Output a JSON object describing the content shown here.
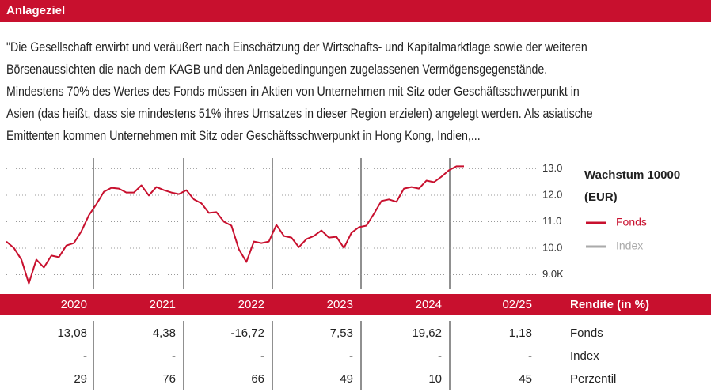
{
  "header": {
    "title": "Anlageziel"
  },
  "description": [
    "\"Die Gesellschaft erwirbt und veräußert nach Einschätzung der Wirtschafts- und Kapitalmarktlage sowie der weiteren",
    "Börsenaussichten die nach dem KAGB und den Anlagebedingungen zugelassenen Vermögensgegenstände.",
    "Mindestens 70% des Wertes des Fonds müssen in Aktien von Unternehmen mit Sitz oder Geschäftsschwerpunkt in",
    "Asien (das heißt, dass sie mindestens 51% ihres Umsatzes in dieser Region erzielen) angelegt werden. Als asiatische",
    "Emittenten kommen Unternehmen mit Sitz oder Geschäftsschwerpunkt in Hong Kong, Indien,..."
  ],
  "chart_data": {
    "type": "line",
    "title": "Wachstum 10000",
    "subtitle": "(EUR)",
    "series": [
      {
        "name": "Fonds",
        "color": "#c8102e",
        "values": [
          10.25,
          10.01,
          9.57,
          8.67,
          9.57,
          9.27,
          9.72,
          9.66,
          10.1,
          10.19,
          10.64,
          11.24,
          11.66,
          12.13,
          12.28,
          12.25,
          12.1,
          12.1,
          12.37,
          11.99,
          12.31,
          12.19,
          12.1,
          12.04,
          12.19,
          11.84,
          11.69,
          11.33,
          11.36,
          11.0,
          10.85,
          9.96,
          9.48,
          10.25,
          10.19,
          10.25,
          10.88,
          10.46,
          10.4,
          10.04,
          10.34,
          10.46,
          10.67,
          10.4,
          10.43,
          10.01,
          10.58,
          10.79,
          10.85,
          11.3,
          11.78,
          11.84,
          11.75,
          12.25,
          12.31,
          12.25,
          12.55,
          12.49,
          12.7,
          12.94,
          13.09,
          13.09
        ]
      },
      {
        "name": "Index",
        "color": "#aaaaaa",
        "values": [
          null,
          null,
          null,
          null,
          null,
          null,
          null,
          null,
          null,
          null,
          null,
          null,
          null,
          null,
          null,
          null,
          null,
          null,
          null,
          null,
          null,
          null,
          null,
          null,
          null,
          null,
          null,
          null,
          null,
          null,
          null,
          null,
          null,
          null,
          null,
          null,
          null,
          null,
          null,
          null,
          null,
          null,
          null,
          null,
          null,
          null,
          null,
          null,
          null,
          null,
          null,
          null,
          null,
          null,
          null,
          null,
          null,
          null,
          null,
          null,
          null,
          null
        ]
      }
    ],
    "ylim": [
      8.45,
      13.4
    ],
    "yticks": [
      {
        "value": 13,
        "label": "13.0"
      },
      {
        "value": 12,
        "label": "12.0"
      },
      {
        "value": 11,
        "label": "11.0"
      },
      {
        "value": 10,
        "label": "10.0"
      },
      {
        "value": 9,
        "label": "9.0K"
      }
    ],
    "grid": true
  },
  "table": {
    "header": [
      "2020",
      "2021",
      "2022",
      "2023",
      "2024",
      "02/25",
      "Rendite (in %)"
    ],
    "rows": [
      [
        "13,08",
        "4,38",
        "-16,72",
        "7,53",
        "19,62",
        "1,18",
        "Fonds"
      ],
      [
        "-",
        "-",
        "-",
        "-",
        "-",
        "-",
        "Index"
      ],
      [
        "29",
        "76",
        "66",
        "49",
        "10",
        "45",
        "Perzentil"
      ]
    ]
  }
}
